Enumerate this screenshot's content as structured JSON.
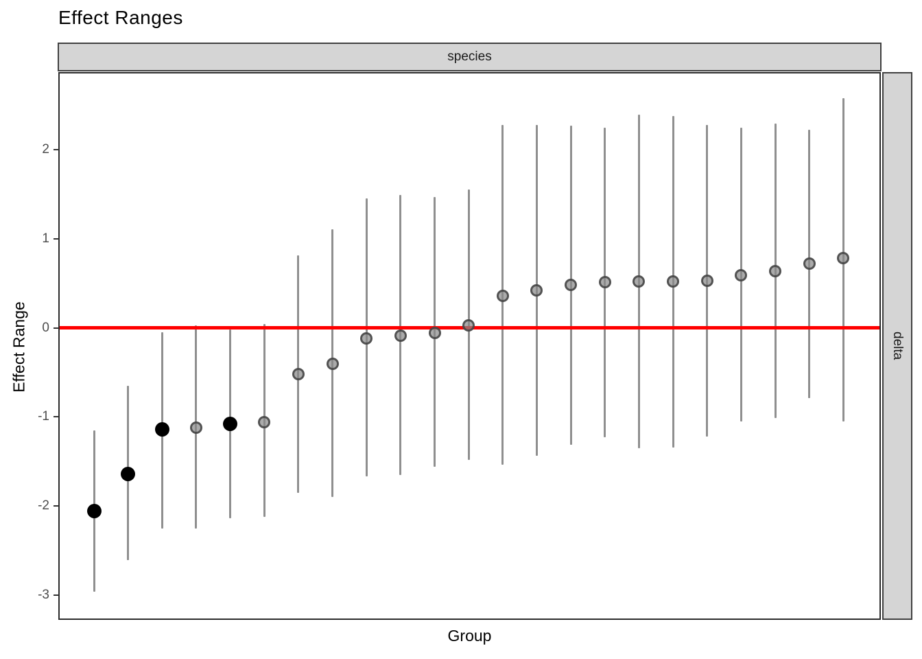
{
  "title": "Effect Ranges",
  "facets": {
    "top_label": "species",
    "right_label": "delta"
  },
  "axes": {
    "y_label": "Effect Range",
    "x_label": "Group",
    "y_ticks": [
      "2",
      "1",
      "0",
      "-1",
      "-2",
      "-3"
    ],
    "y_tick_values": [
      2,
      1,
      0,
      -1,
      -2,
      -3
    ]
  },
  "colors": {
    "strip_fill": "#d5d5d5",
    "strip_border": "#404040",
    "panel_border": "#2b2b2b",
    "errorbar": "#8f8f8f",
    "zero_line": "#ff0000",
    "point_black": "#000000",
    "point_gray_fill": "rgba(135,135,135,0.70)",
    "point_gray_ring": "rgba(60,60,60,0.80)",
    "tick_label": "#4d4d4d"
  },
  "chart_data": {
    "type": "scatter",
    "title": "Effect Ranges",
    "xlabel": "Group",
    "ylabel": "Effect Range",
    "facet_col": "species",
    "facet_row": "delta",
    "ylim": [
      -3.26,
      2.86
    ],
    "y_tick_values": [
      2,
      1,
      0,
      -1,
      -2,
      -3
    ],
    "grid": false,
    "zero_reference_line": 0,
    "n_groups": 23,
    "x_tick_labels_shown": false,
    "points": [
      {
        "group": 1,
        "estimate": -2.06,
        "lo": -2.96,
        "hi": -1.15,
        "significant": true
      },
      {
        "group": 2,
        "estimate": -1.64,
        "lo": -2.61,
        "hi": -0.65,
        "significant": true
      },
      {
        "group": 3,
        "estimate": -1.14,
        "lo": -2.25,
        "hi": -0.05,
        "significant": true
      },
      {
        "group": 4,
        "estimate": -1.12,
        "lo": -2.25,
        "hi": 0.03,
        "significant": false
      },
      {
        "group": 5,
        "estimate": -1.08,
        "lo": -2.14,
        "hi": -0.02,
        "significant": true
      },
      {
        "group": 6,
        "estimate": -1.06,
        "lo": -2.12,
        "hi": 0.04,
        "significant": false
      },
      {
        "group": 7,
        "estimate": -0.52,
        "lo": -1.85,
        "hi": 0.81,
        "significant": false
      },
      {
        "group": 8,
        "estimate": -0.4,
        "lo": -1.9,
        "hi": 1.11,
        "significant": false
      },
      {
        "group": 9,
        "estimate": -0.12,
        "lo": -1.67,
        "hi": 1.45,
        "significant": false
      },
      {
        "group": 10,
        "estimate": -0.09,
        "lo": -1.65,
        "hi": 1.49,
        "significant": false
      },
      {
        "group": 11,
        "estimate": -0.06,
        "lo": -1.56,
        "hi": 1.47,
        "significant": false
      },
      {
        "group": 12,
        "estimate": 0.03,
        "lo": -1.48,
        "hi": 1.55,
        "significant": false
      },
      {
        "group": 13,
        "estimate": 0.36,
        "lo": -1.54,
        "hi": 2.28,
        "significant": false
      },
      {
        "group": 14,
        "estimate": 0.42,
        "lo": -1.44,
        "hi": 2.28,
        "significant": false
      },
      {
        "group": 15,
        "estimate": 0.48,
        "lo": -1.31,
        "hi": 2.27,
        "significant": false
      },
      {
        "group": 16,
        "estimate": 0.51,
        "lo": -1.23,
        "hi": 2.25,
        "significant": false
      },
      {
        "group": 17,
        "estimate": 0.52,
        "lo": -1.35,
        "hi": 2.39,
        "significant": false
      },
      {
        "group": 18,
        "estimate": 0.52,
        "lo": -1.34,
        "hi": 2.38,
        "significant": false
      },
      {
        "group": 19,
        "estimate": 0.53,
        "lo": -1.22,
        "hi": 2.28,
        "significant": false
      },
      {
        "group": 20,
        "estimate": 0.59,
        "lo": -1.05,
        "hi": 2.25,
        "significant": false
      },
      {
        "group": 21,
        "estimate": 0.64,
        "lo": -1.01,
        "hi": 2.29,
        "significant": false
      },
      {
        "group": 22,
        "estimate": 0.72,
        "lo": -0.79,
        "hi": 2.22,
        "significant": false
      },
      {
        "group": 23,
        "estimate": 0.78,
        "lo": -1.05,
        "hi": 2.58,
        "significant": false
      }
    ]
  }
}
